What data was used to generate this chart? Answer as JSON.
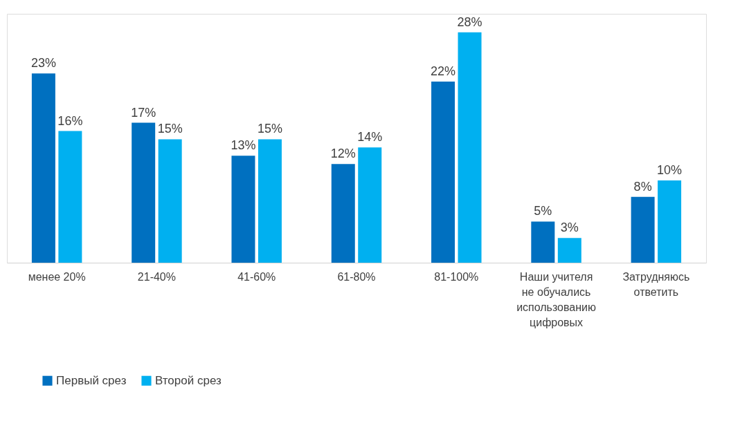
{
  "chart_data": {
    "type": "bar",
    "categories": [
      "менее 20%",
      "21-40%",
      "41-60%",
      "61-80%",
      "81-100%",
      "Наши учителя не обучались использованию цифровых",
      "Затрудняюсь ответить"
    ],
    "series": [
      {
        "name": "Первый срез",
        "color": "#0070c0",
        "values": [
          23,
          17,
          13,
          12,
          22,
          5,
          8
        ],
        "value_labels": [
          "23%",
          "17%",
          "13%",
          "12%",
          "22%",
          "5%",
          "8%"
        ]
      },
      {
        "name": "Второй срез",
        "color": "#00b0f0",
        "values": [
          16,
          15,
          15,
          14,
          28,
          3,
          10
        ],
        "value_labels": [
          "16%",
          "15%",
          "15%",
          "14%",
          "28%",
          "3%",
          "10%"
        ]
      }
    ],
    "legend": "bottom",
    "grid": false
  }
}
